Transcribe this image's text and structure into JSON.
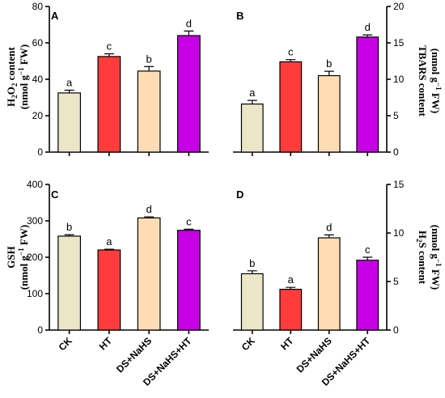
{
  "categories": [
    "CK",
    "HT",
    "DS+NaHS",
    "DS+NaHS+HT"
  ],
  "bar_colors": [
    "#ebe6c8",
    "#ff3b3b",
    "#ffdcb4",
    "#c800e6"
  ],
  "chart_data": [
    {
      "type": "bar",
      "panel": "A",
      "categories": [
        "CK",
        "HT",
        "DS+NaHS",
        "DS+NaHS+HT"
      ],
      "values": [
        32.5,
        52.5,
        44.5,
        64
      ],
      "errors": [
        1.5,
        1.5,
        2.5,
        2.5
      ],
      "letters": [
        "a",
        "c",
        "b",
        "d"
      ],
      "ylim": [
        0,
        80
      ],
      "yticks": [
        0,
        20,
        40,
        60,
        80
      ],
      "ylabel_main": "H2O2 content",
      "ylabel_unit": "(nmol g−1 FW)",
      "axis_side": "left"
    },
    {
      "type": "bar",
      "panel": "B",
      "categories": [
        "CK",
        "HT",
        "DS+NaHS",
        "DS+NaHS+HT"
      ],
      "values": [
        6.6,
        12.4,
        10.5,
        15.8
      ],
      "errors": [
        0.5,
        0.3,
        0.6,
        0.3
      ],
      "letters": [
        "a",
        "c",
        "b",
        "d"
      ],
      "ylim": [
        0,
        20
      ],
      "yticks": [
        0,
        5,
        10,
        15,
        20
      ],
      "ylabel_main": "TBARS content",
      "ylabel_unit": "(nmol g−1 FW)",
      "axis_side": "right"
    },
    {
      "type": "bar",
      "panel": "C",
      "categories": [
        "CK",
        "HT",
        "DS+NaHS",
        "DS+NaHS+HT"
      ],
      "values": [
        258,
        220,
        308,
        274
      ],
      "errors": [
        4,
        2,
        3,
        3
      ],
      "letters": [
        "b",
        "a",
        "d",
        "c"
      ],
      "ylim": [
        0,
        400
      ],
      "yticks": [
        0,
        100,
        200,
        300,
        400
      ],
      "ylabel_main": "GSH",
      "ylabel_unit": "(nmol g−1 FW)",
      "axis_side": "left"
    },
    {
      "type": "bar",
      "panel": "D",
      "categories": [
        "CK",
        "HT",
        "DS+NaHS",
        "DS+NaHS+HT"
      ],
      "values": [
        5.8,
        4.2,
        9.5,
        7.2
      ],
      "errors": [
        0.3,
        0.2,
        0.3,
        0.3
      ],
      "letters": [
        "b",
        "a",
        "d",
        "c"
      ],
      "ylim": [
        0,
        15
      ],
      "yticks": [
        0,
        5,
        10,
        15
      ],
      "ylabel_main": "H2S content",
      "ylabel_unit": "(nmol g−1 FW)",
      "axis_side": "right"
    }
  ]
}
